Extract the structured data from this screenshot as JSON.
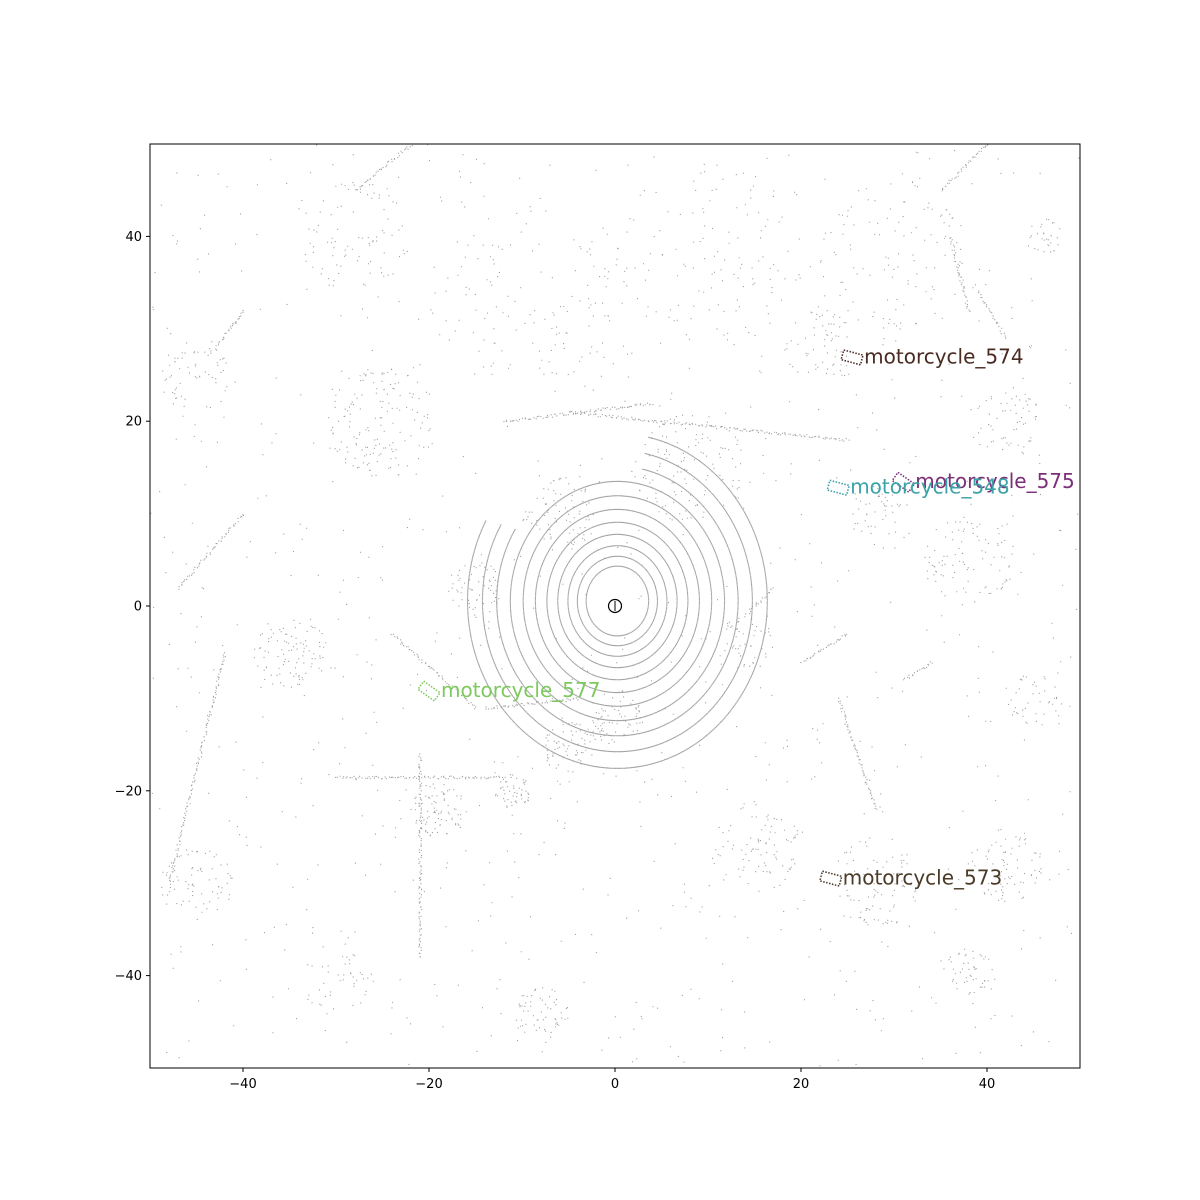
{
  "chart_data": {
    "type": "scatter",
    "title": "",
    "xlabel": "",
    "ylabel": "",
    "xlim": [
      -50,
      50
    ],
    "ylim": [
      -50,
      50
    ],
    "x_ticks": [
      -40,
      -20,
      0,
      20,
      40
    ],
    "y_ticks": [
      -40,
      -20,
      0,
      20,
      40
    ],
    "x_tick_labels": [
      "−40",
      "−20",
      "0",
      "20",
      "40"
    ],
    "y_tick_labels": [
      "−40",
      "−20",
      "0",
      "20",
      "40"
    ],
    "grid": false,
    "ego": {
      "x": 0,
      "y": 0
    },
    "point_color": "#555555",
    "objects": [
      {
        "label": "motorcycle_574",
        "x": 25.5,
        "y": 26.9,
        "color": "#4a2b22"
      },
      {
        "label": "motorcycle_575",
        "x": 31.0,
        "y": 13.4,
        "color": "#7b2f78"
      },
      {
        "label": "motorcycle_548",
        "x": 24.0,
        "y": 12.8,
        "color": "#3aa3a8"
      },
      {
        "label": "motorcycle_577",
        "x": -20.0,
        "y": -9.2,
        "color": "#7dc95e"
      },
      {
        "label": "motorcycle_573",
        "x": 23.2,
        "y": -29.5,
        "color": "#4a3b28"
      }
    ]
  }
}
